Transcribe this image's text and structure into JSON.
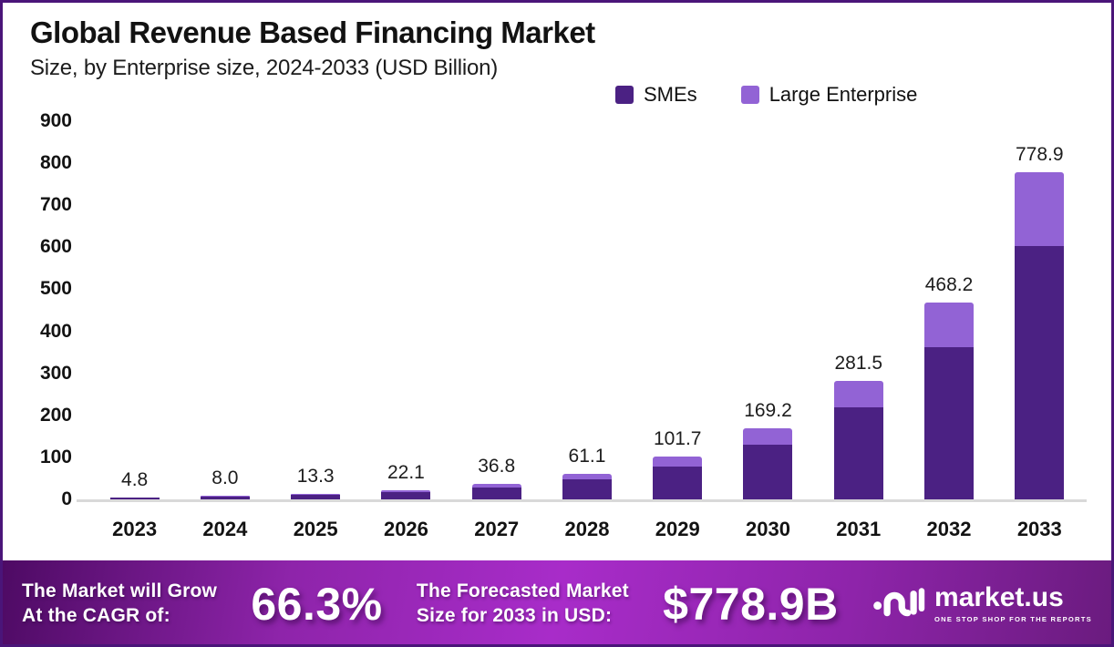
{
  "frame": {
    "border_color": "#4a1579",
    "background": "#ffffff"
  },
  "header": {
    "title": "Global Revenue Based Financing Market",
    "subtitle": "Size, by Enterprise size, 2024-2033 (USD Billion)"
  },
  "chart_data": {
    "type": "bar",
    "stacked": true,
    "title": "Global Revenue Based Financing Market",
    "subtitle": "Size, by Enterprise size, 2024-2033 (USD Billion)",
    "unit": "USD Billion",
    "categories": [
      "2023",
      "2024",
      "2025",
      "2026",
      "2027",
      "2028",
      "2029",
      "2030",
      "2031",
      "2032",
      "2033"
    ],
    "series": [
      {
        "name": "SMEs",
        "color": "#4b2183",
        "values": [
          3.7,
          6.2,
          10.3,
          17.1,
          28.5,
          47.3,
          78.8,
          131.1,
          218.2,
          362.9,
          603.6
        ]
      },
      {
        "name": "Large Enterprise",
        "color": "#9263d5",
        "values": [
          1.1,
          1.8,
          3.0,
          5.0,
          8.3,
          13.8,
          22.9,
          38.1,
          63.3,
          105.3,
          175.3
        ]
      }
    ],
    "totals": [
      4.8,
      8.0,
      13.3,
      22.1,
      36.8,
      61.1,
      101.7,
      169.2,
      281.5,
      468.2,
      778.9
    ],
    "total_labels": [
      "4.8",
      "8.0",
      "13.3",
      "22.1",
      "36.8",
      "61.1",
      "101.7",
      "169.2",
      "281.5",
      "468.2",
      "778.9"
    ],
    "ylim": [
      0,
      900
    ],
    "yticks": [
      0,
      100,
      200,
      300,
      400,
      500,
      600,
      700,
      800,
      900
    ],
    "grid": false,
    "legend_position": "top-center",
    "baseline_color": "#d9d9d9"
  },
  "banner": {
    "grow_line1": "The Market will Grow",
    "grow_line2": "At the CAGR of:",
    "cagr_value": "66.3%",
    "forecast_line1": "The Forecasted Market",
    "forecast_line2": "Size for 2033 in USD:",
    "forecast_value": "$778.9B",
    "logo_text": "market.us",
    "logo_tagline": "ONE STOP SHOP FOR THE REPORTS",
    "gradient": [
      "#4d0a63",
      "#a82cc9",
      "#6a1b7e"
    ],
    "text_color": "#ffffff"
  }
}
